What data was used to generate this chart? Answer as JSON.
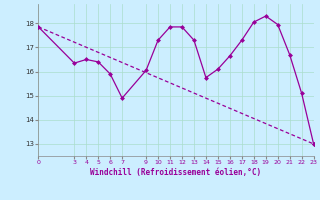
{
  "line1_x": [
    0,
    3,
    4,
    5,
    6,
    7,
    9,
    10,
    11,
    12,
    13,
    14,
    15,
    16,
    17,
    18,
    19,
    20,
    21,
    22,
    23
  ],
  "line1_y": [
    17.85,
    16.35,
    16.5,
    16.4,
    15.9,
    14.9,
    16.05,
    17.3,
    17.85,
    17.85,
    17.3,
    15.75,
    16.1,
    16.65,
    17.3,
    18.05,
    18.3,
    17.95,
    16.7,
    15.1,
    13.0
  ],
  "line2_x": [
    0,
    23
  ],
  "line2_y": [
    17.85,
    13.0
  ],
  "line_color": "#990099",
  "bg_color": "#cceeff",
  "grid_color": "#aaddcc",
  "xlabel": "Windchill (Refroidissement éolien,°C)",
  "xlim": [
    0,
    23
  ],
  "ylim": [
    12.5,
    18.8
  ],
  "yticks": [
    13,
    14,
    15,
    16,
    17,
    18
  ],
  "xticks": [
    0,
    3,
    4,
    5,
    6,
    7,
    9,
    10,
    11,
    12,
    13,
    14,
    15,
    16,
    17,
    18,
    19,
    20,
    21,
    22,
    23
  ],
  "markersize": 2.5,
  "linewidth": 0.9
}
